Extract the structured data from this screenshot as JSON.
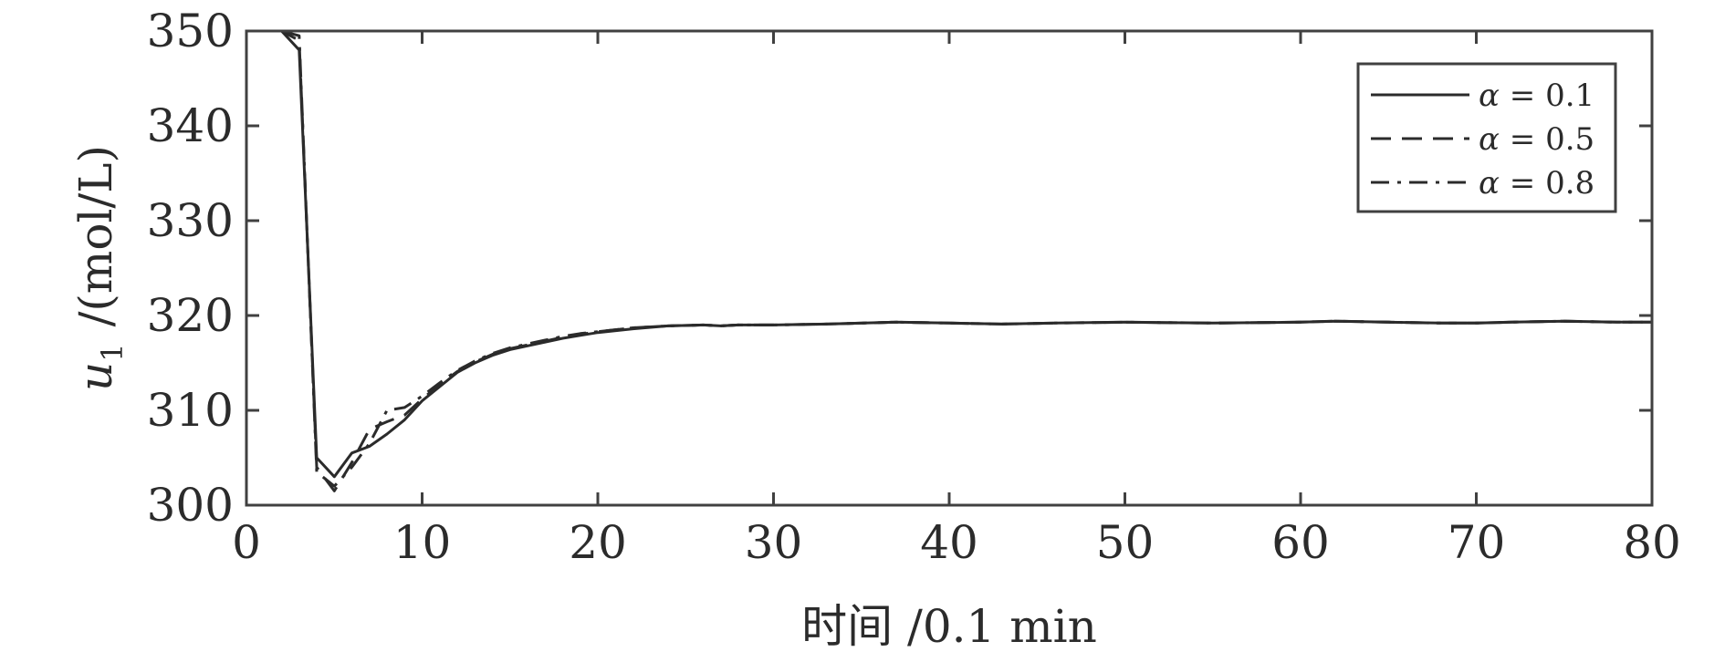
{
  "chart_data": {
    "type": "line",
    "xlabel": "时间 /0.1 min",
    "ylabel_var": "u",
    "ylabel_sub": "1",
    "ylabel_unit": "/(mol/L)",
    "xlim": [
      0,
      80
    ],
    "ylim": [
      300,
      350
    ],
    "xticks": [
      0,
      10,
      20,
      30,
      40,
      50,
      60,
      70,
      80
    ],
    "yticks": [
      300,
      310,
      320,
      330,
      340,
      350
    ],
    "grid": false,
    "legend_position": "top-right",
    "colors": {
      "line": "#2b2b2b",
      "axis": "#404040"
    },
    "series": [
      {
        "name": "α = 0.1",
        "legend_symbol": "α",
        "legend_value": "= 0.1",
        "style": "solid",
        "x": [
          0,
          1,
          2,
          3,
          4,
          5,
          6,
          7,
          8,
          9,
          10,
          11,
          12,
          13,
          14,
          15,
          16,
          17,
          18,
          19,
          20,
          22,
          24,
          26,
          27,
          28,
          30,
          33,
          37,
          40,
          43,
          46,
          50,
          55,
          60,
          62,
          65,
          68,
          70,
          72,
          75,
          78,
          80
        ],
        "y": [
          350,
          350,
          350,
          348,
          305,
          303,
          305.5,
          306.2,
          307.5,
          309,
          311,
          312.5,
          314,
          315,
          315.8,
          316.4,
          316.8,
          317.2,
          317.6,
          317.9,
          318.2,
          318.6,
          318.9,
          319,
          318.9,
          319,
          319,
          319.1,
          319.3,
          319.2,
          319.1,
          319.2,
          319.3,
          319.2,
          319.3,
          319.4,
          319.3,
          319.2,
          319.2,
          319.3,
          319.4,
          319.3,
          319.3
        ]
      },
      {
        "name": "α = 0.5",
        "legend_symbol": "α",
        "legend_value": "= 0.5",
        "style": "dashed",
        "x": [
          0,
          1,
          2,
          3,
          4,
          5,
          6,
          7,
          8,
          9,
          10,
          11,
          12,
          13,
          14,
          15,
          16,
          17,
          18,
          19,
          20,
          22,
          24,
          26,
          27,
          28,
          30,
          33,
          37,
          40,
          43,
          46,
          50,
          55,
          60,
          62,
          65,
          68,
          70,
          72,
          75,
          78,
          80
        ],
        "y": [
          350,
          350,
          350,
          349,
          304,
          301.5,
          304.5,
          308,
          308.8,
          309.5,
          311.2,
          312.7,
          314.1,
          315.1,
          315.9,
          316.5,
          316.9,
          317.3,
          317.7,
          318,
          318.3,
          318.7,
          318.9,
          319,
          318.9,
          319,
          319,
          319.1,
          319.3,
          319.2,
          319.1,
          319.2,
          319.3,
          319.2,
          319.3,
          319.4,
          319.3,
          319.2,
          319.2,
          319.3,
          319.4,
          319.3,
          319.3
        ]
      },
      {
        "name": "α = 0.8",
        "legend_symbol": "α",
        "legend_value": "= 0.8",
        "style": "dashdot",
        "x": [
          0,
          1,
          2,
          3,
          4,
          5,
          6,
          7,
          8,
          9,
          10,
          11,
          12,
          13,
          14,
          15,
          16,
          17,
          18,
          19,
          20,
          22,
          24,
          26,
          27,
          28,
          30,
          33,
          37,
          40,
          43,
          46,
          50,
          55,
          60,
          62,
          65,
          68,
          70,
          72,
          75,
          78,
          80
        ],
        "y": [
          350,
          350,
          350,
          349.5,
          303.5,
          302,
          304,
          306.5,
          310,
          310.3,
          311.5,
          312.9,
          314.2,
          315.2,
          316,
          316.6,
          317,
          317.4,
          317.8,
          318.1,
          318.3,
          318.7,
          318.9,
          319,
          318.9,
          319,
          319,
          319.1,
          319.3,
          319.2,
          319.1,
          319.2,
          319.3,
          319.2,
          319.3,
          319.4,
          319.3,
          319.2,
          319.2,
          319.3,
          319.4,
          319.3,
          319.3
        ]
      }
    ]
  }
}
